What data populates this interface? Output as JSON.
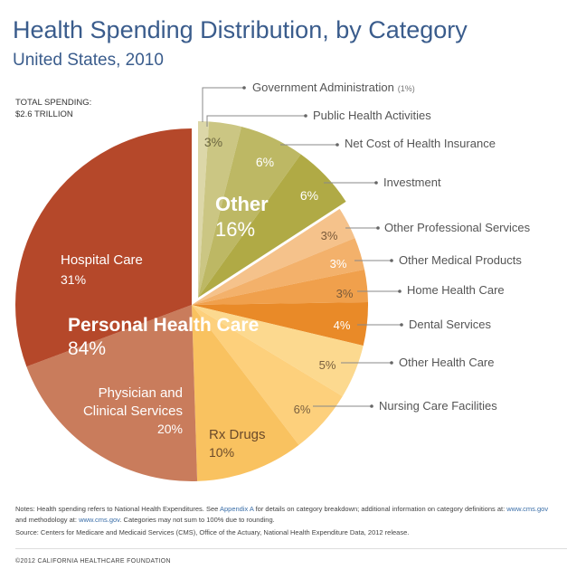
{
  "title": "Health Spending Distribution, by Category",
  "subtitle": "United States, 2010",
  "total_label": "TOTAL SPENDING:",
  "total_value": "$2.6 TRILLION",
  "chart_data": {
    "type": "pie",
    "title": "Health Spending Distribution, by Category",
    "subtitle": "United States, 2010",
    "groups": [
      {
        "name": "Other",
        "value": 16,
        "label": "16%"
      },
      {
        "name": "Personal Health Care",
        "value": 84,
        "label": "84%"
      }
    ],
    "slices": [
      {
        "name": "Government Administration",
        "value": 1,
        "label": "(1%)",
        "group": "Other",
        "color": "#dcd7a8"
      },
      {
        "name": "Public Health Activities",
        "value": 3,
        "label": "3%",
        "group": "Other",
        "color": "#cbc683"
      },
      {
        "name": "Net Cost of Health Insurance",
        "value": 6,
        "label": "6%",
        "group": "Other",
        "color": "#bdb864"
      },
      {
        "name": "Investment",
        "value": 6,
        "label": "6%",
        "group": "Other",
        "color": "#b0aa45"
      },
      {
        "name": "Other Professional Services",
        "value": 3,
        "label": "3%",
        "group": "Personal Health Care",
        "color": "#f5c28b"
      },
      {
        "name": "Other Medical Products",
        "value": 3,
        "label": "3%",
        "group": "Personal Health Care",
        "color": "#f3b16b"
      },
      {
        "name": "Home Health Care",
        "value": 3,
        "label": "3%",
        "group": "Personal Health Care",
        "color": "#f0a04c"
      },
      {
        "name": "Dental Services",
        "value": 4,
        "label": "4%",
        "group": "Personal Health Care",
        "color": "#e98a28"
      },
      {
        "name": "Other Health Care",
        "value": 5,
        "label": "5%",
        "group": "Personal Health Care",
        "color": "#fcd98f"
      },
      {
        "name": "Nursing Care Facilities",
        "value": 6,
        "label": "6%",
        "group": "Personal Health Care",
        "color": "#fdd07c"
      },
      {
        "name": "Rx Drugs",
        "value": 10,
        "label": "10%",
        "group": "Personal Health Care",
        "color": "#f9c260"
      },
      {
        "name": "Physician and Clinical Services",
        "value": 20,
        "label": "20%",
        "group": "Personal Health Care",
        "color": "#c97c5c"
      },
      {
        "name": "Hospital Care",
        "value": 31,
        "label": "31%",
        "group": "Personal Health Care",
        "color": "#b5482a"
      }
    ]
  },
  "inside": {
    "rx1": "Rx Drugs",
    "phys1": "Physician and",
    "phys2": "Clinical Services",
    "hosp": "Hospital Care"
  },
  "notes": {
    "n1": "Notes: Health spending refers to National Health Expenditures. See ",
    "appendix": "Appendix A",
    "n2": " for details on category breakdown; additional information on category definitions at: ",
    "link1": "www.cms.gov",
    "n3": " and methodology at: ",
    "link2": "www.cms.gov",
    "n4": ". Categories may not sum to 100% due to rounding.",
    "source": "Source: Centers for Medicare and Medicaid Services (CMS), Office of the Actuary, National Health Expenditure Data, 2012 release."
  },
  "copyright": "©2012 CALIFORNIA HEALTHCARE FOUNDATION"
}
